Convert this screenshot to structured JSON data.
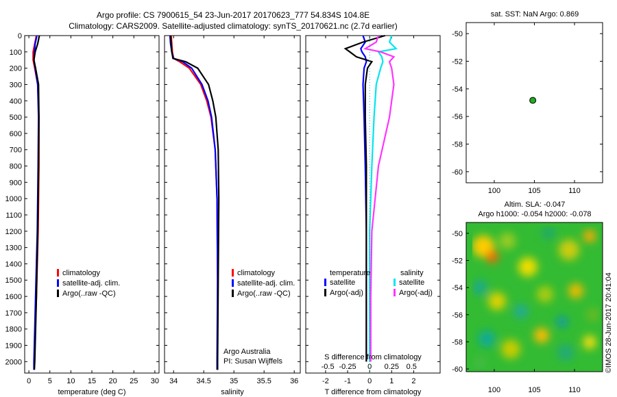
{
  "title": {
    "line1": "Argo profile: CS 7900615_54 23-Jun-2017 20170623_777 54.834S 104.8E",
    "line2": "Climatology: CARS2009. Satellite-adjusted climatology: synTS_20170621.nc (2.7d earlier)"
  },
  "credit": {
    "line1": "Argo Australia",
    "line2": "PI: Susan Wijffels"
  },
  "imos_stamp": "©IMOS 28-Jun-2017 20:41:04",
  "colors": {
    "climatology": "#ff0000",
    "satellite": "#0000ff",
    "argo": "#000000",
    "sal_satellite": "#00e5ee",
    "sal_argo": "#ff33ff",
    "marker_fill": "#22aa22"
  },
  "chart_data": [
    {
      "type": "line",
      "name": "temperature-profile",
      "xlabel": "temperature (deg C)",
      "ylabel": "",
      "xlim": [
        -1,
        31
      ],
      "ylim": [
        2070,
        0
      ],
      "xticks": [
        0,
        5,
        10,
        15,
        20,
        25,
        30
      ],
      "yticks": [
        0,
        100,
        200,
        300,
        400,
        500,
        600,
        700,
        800,
        900,
        1000,
        1100,
        1200,
        1300,
        1400,
        1500,
        1600,
        1700,
        1800,
        1900,
        2000
      ],
      "depth": [
        0,
        50,
        100,
        150,
        200,
        300,
        500,
        800,
        1200,
        1600,
        2000,
        2050
      ],
      "series": [
        {
          "name": "climatology",
          "x": [
            1.8,
            1.4,
            1.0,
            1.0,
            1.4,
            2.1,
            2.4,
            2.4,
            2.2,
            1.8,
            1.3,
            1.2
          ]
        },
        {
          "name": "satellite-adj. clim.",
          "x": [
            1.9,
            1.5,
            1.3,
            1.2,
            1.5,
            2.1,
            2.3,
            2.2,
            2.0,
            1.6,
            1.2,
            1.2
          ]
        },
        {
          "name": "Argo(..raw -QC)",
          "x": [
            2.5,
            2.1,
            1.5,
            1.2,
            1.6,
            2.3,
            2.4,
            2.3,
            2.1,
            1.8,
            1.4,
            1.3
          ]
        }
      ],
      "legend_placement": "lower-center",
      "legend": [
        "climatology",
        "satellite-adj. clim.",
        "Argo(..raw -QC)"
      ]
    },
    {
      "type": "line",
      "name": "salinity-profile",
      "xlabel": "salinity",
      "xlim": [
        33.85,
        36.1
      ],
      "ylim": [
        2070,
        0
      ],
      "xticks": [
        34,
        34.5,
        35,
        35.5,
        36
      ],
      "depth": [
        0,
        50,
        100,
        140,
        160,
        200,
        300,
        400,
        500,
        700,
        1000,
        1500,
        2000,
        2050
      ],
      "series": [
        {
          "name": "climatology",
          "x": [
            33.96,
            33.97,
            33.98,
            34.0,
            34.1,
            34.26,
            34.45,
            34.55,
            34.62,
            34.69,
            34.72,
            34.73,
            34.73,
            34.73
          ]
        },
        {
          "name": "satellite-adj. clim.",
          "x": [
            33.94,
            33.95,
            33.97,
            34.0,
            34.15,
            34.3,
            34.47,
            34.57,
            34.63,
            34.69,
            34.72,
            34.73,
            34.72,
            34.72
          ]
        },
        {
          "name": "Argo(..raw -QC)",
          "x": [
            33.95,
            33.96,
            33.97,
            33.99,
            34.2,
            34.4,
            34.58,
            34.65,
            34.7,
            34.74,
            34.75,
            34.74,
            34.73,
            34.73
          ]
        }
      ],
      "legend_placement": "lower-center",
      "legend": [
        "climatology",
        "satellite-adj. clim.",
        "Argo(..raw -QC)"
      ]
    },
    {
      "type": "line",
      "name": "difference-profile",
      "xlabel": "T difference from climatology",
      "top_xlabel": "S difference from climatology",
      "xlim": [
        -2.9,
        3.2
      ],
      "ylim": [
        2070,
        0
      ],
      "xticks": [
        -2,
        -1,
        0,
        1,
        2
      ],
      "top_xticks": [
        "-0.5",
        "-0.25",
        "0",
        "0.25",
        "0.5"
      ],
      "depth": [
        0,
        40,
        80,
        100,
        130,
        160,
        200,
        300,
        500,
        800,
        1200,
        1600,
        2000
      ],
      "series": [
        {
          "name": "temperature satellite",
          "x": [
            -0.3,
            -0.2,
            -0.4,
            -0.35,
            -0.2,
            -0.15,
            -0.25,
            -0.3,
            -0.25,
            -0.2,
            -0.15,
            -0.15,
            -0.15
          ]
        },
        {
          "name": "temperature Argo(-adj)",
          "x": [
            0.7,
            -0.3,
            -1.1,
            -0.9,
            -0.6,
            0.1,
            -0.1,
            -0.2,
            -0.2,
            -0.15,
            -0.15,
            -0.15,
            -0.15
          ]
        },
        {
          "name": "salinity satellite",
          "x": [
            1.0,
            0.9,
            1.2,
            0.4,
            0.55,
            0.6,
            0.5,
            0.3,
            0.2,
            0.1,
            0.0,
            0.0,
            0.0
          ]
        },
        {
          "name": "salinity Argo(-adj)",
          "x": [
            0.4,
            0.3,
            -0.2,
            0.5,
            1.1,
            0.9,
            1.0,
            1.1,
            0.9,
            0.4,
            0.1,
            0.05,
            0.05
          ]
        }
      ],
      "legend_groups": [
        "temperature",
        "salinity"
      ],
      "legend": [
        "satellite",
        "Argo(-adj)",
        "satellite",
        "Argo(-adj)"
      ]
    },
    {
      "type": "scatter",
      "name": "location-map",
      "title": "sat. SST: NaN Argo: 0.869",
      "xlim": [
        96.5,
        113.5
      ],
      "ylim": [
        -60.8,
        -49.2
      ],
      "xticks": [
        100,
        105,
        110
      ],
      "yticks": [
        -50,
        -52,
        -54,
        -56,
        -58,
        -60
      ],
      "points": [
        {
          "x": 104.8,
          "y": -54.834
        }
      ]
    },
    {
      "type": "heatmap",
      "name": "altimetry-map",
      "title_line1": "Altim. SLA: -0.047",
      "title_line2": "Argo h1000: -0.054 h2000: -0.078",
      "xlim": [
        96.5,
        113.5
      ],
      "ylim": [
        -60.2,
        -49.2
      ],
      "xticks": [
        100,
        105,
        110
      ],
      "yticks": [
        -50,
        -52,
        -54,
        -56,
        -58,
        -60
      ]
    }
  ]
}
